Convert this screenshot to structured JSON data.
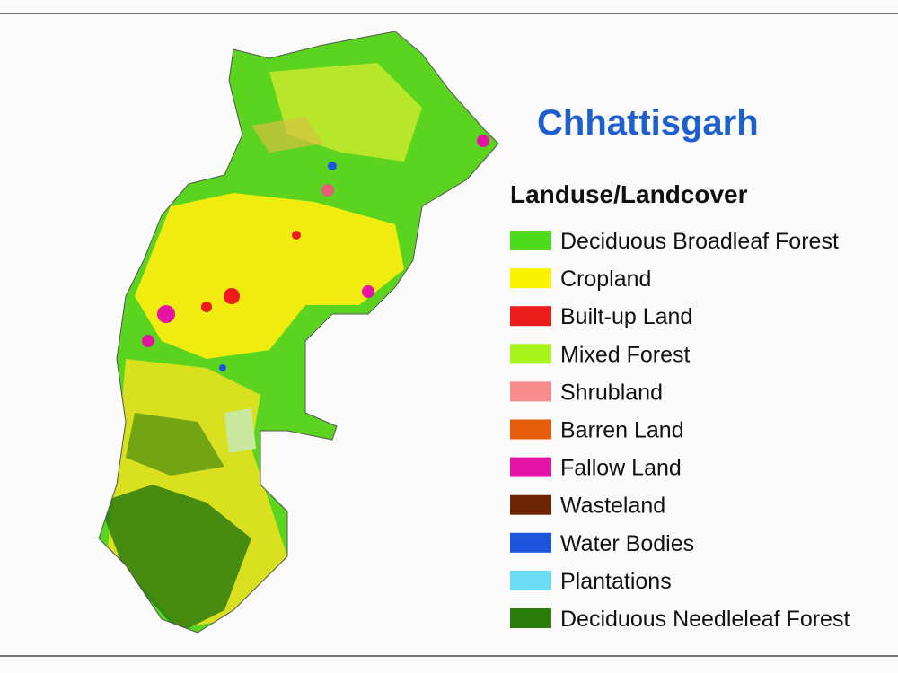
{
  "title": "Chhattisgarh",
  "legend": {
    "title": "Landuse/Landcover",
    "items": [
      {
        "label": "Deciduous Broadleaf Forest",
        "color": "#4cdc1c"
      },
      {
        "label": "Cropland",
        "color": "#f8f400"
      },
      {
        "label": "Built-up Land",
        "color": "#ec1c1c"
      },
      {
        "label": "Mixed Forest",
        "color": "#a8f41c"
      },
      {
        "label": "Shrubland",
        "color": "#f88c8c"
      },
      {
        "label": "Barren Land",
        "color": "#e45c0c"
      },
      {
        "label": "Fallow Land",
        "color": "#e414a4"
      },
      {
        "label": "Wasteland",
        "color": "#6c2404"
      },
      {
        "label": "Water Bodies",
        "color": "#1c54dc"
      },
      {
        "label": "Plantations",
        "color": "#6cdcf4"
      },
      {
        "label": "Deciduous Needleleaf Forest",
        "color": "#2c7c0c"
      }
    ]
  }
}
